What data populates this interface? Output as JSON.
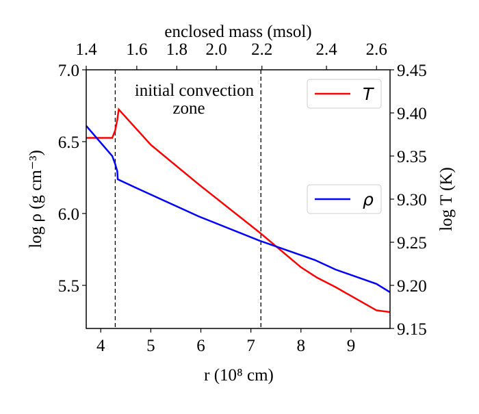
{
  "chart_data": {
    "type": "line",
    "xlabel": "r (10⁸ cm)",
    "ylabel": "log ρ (g cm⁻³)",
    "y2label": "log T (K)",
    "x2label": "enclosed mass (msol)",
    "xlim": [
      3.71,
      9.78
    ],
    "xticks": [
      4,
      5,
      6,
      7,
      8,
      9
    ],
    "ylim": [
      5.2,
      7.0
    ],
    "yticks": [
      5.5,
      {
        "value": 6,
        "label": "6.0"
      },
      6.5,
      {
        "value": 7,
        "label": "7.0"
      }
    ],
    "y2lim": [
      9.15,
      9.45
    ],
    "y2ticks": [
      9.15,
      {
        "value": 9.2,
        "label": "9.20"
      },
      9.25,
      {
        "value": 9.3,
        "label": "9.30"
      },
      9.35,
      {
        "value": 9.4,
        "label": "9.40"
      },
      9.45
    ],
    "x2ticks": [
      1.4,
      1.6,
      1.8,
      {
        "value": 2,
        "label": "2.0"
      },
      2.2,
      2.4,
      2.6
    ],
    "x2tick_r": [
      3.71,
      4.72,
      5.52,
      6.31,
      7.22,
      8.51,
      9.51
    ],
    "vlines": [
      4.29,
      7.2
    ],
    "annotation": [
      "initial convection",
      "zone"
    ],
    "series": [
      {
        "name": "T",
        "color": "#ff0000",
        "axis": "y2",
        "legend": "upper right",
        "x": [
          3.71,
          4.23,
          4.29,
          4.33,
          4.36,
          5.0,
          5.96,
          7.18,
          8.0,
          8.32,
          8.69,
          9.51,
          9.78
        ],
        "values": [
          9.371,
          9.371,
          9.38,
          9.392,
          9.404,
          9.363,
          9.317,
          9.261,
          9.221,
          9.209,
          9.198,
          9.171,
          9.169
        ]
      },
      {
        "name": "ρ",
        "color": "#0000ff",
        "axis": "y",
        "legend": "center right",
        "x": [
          3.71,
          4.23,
          4.29,
          4.33,
          4.34,
          4.72,
          5.95,
          7.18,
          8.28,
          8.69,
          9.51,
          9.78
        ],
        "values": [
          6.61,
          6.4,
          6.343,
          6.295,
          6.238,
          6.176,
          5.981,
          5.81,
          5.676,
          5.61,
          5.51,
          5.452
        ]
      }
    ]
  }
}
